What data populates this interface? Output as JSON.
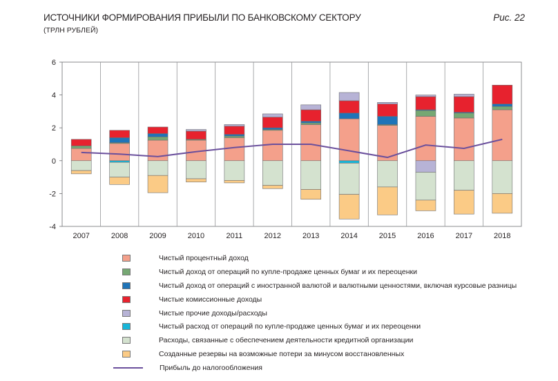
{
  "header": {
    "title": "ИСТОЧНИКИ ФОРМИРОВАНИЯ ПРИБЫЛИ ПО БАНКОВСКОМУ СЕКТОРУ",
    "subtitle": "(ТРЛН РУБЛЕЙ)",
    "figure_number": "Рис. 22"
  },
  "chart_data": {
    "type": "bar",
    "stacked": true,
    "title": "ИСТОЧНИКИ ФОРМИРОВАНИЯ ПРИБЫЛИ ПО БАНКОВСКОМУ СЕКТОРУ",
    "ylabel": "трлн рублей",
    "ylim": [
      -4,
      6
    ],
    "yticks": [
      -4,
      -2,
      0,
      2,
      4,
      6
    ],
    "categories": [
      "2007",
      "2008",
      "2009",
      "2010",
      "2011",
      "2012",
      "2013",
      "2014",
      "2015",
      "2016",
      "2017",
      "2018"
    ],
    "series": [
      {
        "key": "interest",
        "name": "Чистый процентный доход",
        "color": "#f4a08b",
        "values": [
          0.75,
          1.05,
          1.25,
          1.25,
          1.4,
          1.85,
          2.2,
          2.55,
          2.15,
          2.7,
          2.6,
          3.1
        ],
        "sign": "pos"
      },
      {
        "key": "securities_income",
        "name": "Чистый доход от операций по купле-продаже ценных бумаг и их переоценки",
        "color": "#76a873",
        "values": [
          0.15,
          0.05,
          0.2,
          0.05,
          0.1,
          0.05,
          0.1,
          0.0,
          0.05,
          0.35,
          0.3,
          0.2
        ],
        "sign": "pos"
      },
      {
        "key": "fx_income",
        "name": "Чистый доход от операций с иностранной валютой и валютными ценностями, включая курсовые разницы",
        "color": "#1f74b8",
        "values": [
          0.0,
          0.3,
          0.2,
          0.0,
          0.1,
          0.1,
          0.1,
          0.35,
          0.5,
          0.05,
          0.05,
          0.15
        ],
        "sign": "pos"
      },
      {
        "key": "commission",
        "name": "Чистые комиссионные доходы",
        "color": "#e7222e",
        "values": [
          0.4,
          0.45,
          0.4,
          0.5,
          0.5,
          0.65,
          0.7,
          0.75,
          0.75,
          0.8,
          0.95,
          1.15
        ],
        "sign": "pos"
      },
      {
        "key": "other",
        "name": "Чистые прочие доходы/расходы",
        "color": "#b7b3d6",
        "values": [
          0.0,
          0.0,
          0.0,
          0.1,
          0.1,
          0.2,
          0.3,
          0.5,
          0.1,
          0.1,
          0.15,
          0.0
        ],
        "sign": "pos"
      },
      {
        "key": "securities_expense",
        "name": "Чистый расход от операций по купле-продаже ценных бумаг и их переоценки",
        "color": "#18b5d8",
        "values": [
          0,
          -0.1,
          0,
          0,
          0,
          0,
          0,
          -0.15,
          0,
          0,
          0,
          0
        ],
        "sign": "neg"
      },
      {
        "key": "other_neg",
        "name": "Чистые прочие доходы/расходы",
        "color": "#b7b3d6",
        "values": [
          0,
          0,
          0,
          0,
          0,
          0,
          0,
          0,
          0,
          -0.7,
          0,
          0
        ],
        "sign": "neg"
      },
      {
        "key": "operating_expenses",
        "name": "Расходы, связанные с обеспечением деятельности кредитной организации",
        "color": "#d4e2cf",
        "values": [
          -0.6,
          -0.9,
          -0.9,
          -1.1,
          -1.2,
          -1.5,
          -1.75,
          -1.9,
          -1.6,
          -1.7,
          -1.8,
          -2.0
        ],
        "sign": "neg"
      },
      {
        "key": "reserves",
        "name": "Созданные резервы на возможные потери за минусом восстановленных",
        "color": "#fbcb86",
        "values": [
          -0.2,
          -0.45,
          -1.05,
          -0.2,
          -0.15,
          -0.2,
          -0.6,
          -1.5,
          -1.7,
          -0.65,
          -1.45,
          -1.2
        ],
        "sign": "neg"
      }
    ],
    "line": {
      "name": "Прибыль до налогообложения",
      "color": "#6a4f9c",
      "values": [
        0.5,
        0.4,
        0.25,
        0.55,
        0.8,
        1.0,
        1.0,
        0.6,
        0.2,
        0.95,
        0.75,
        1.3
      ]
    },
    "legend_position": "bottom"
  }
}
